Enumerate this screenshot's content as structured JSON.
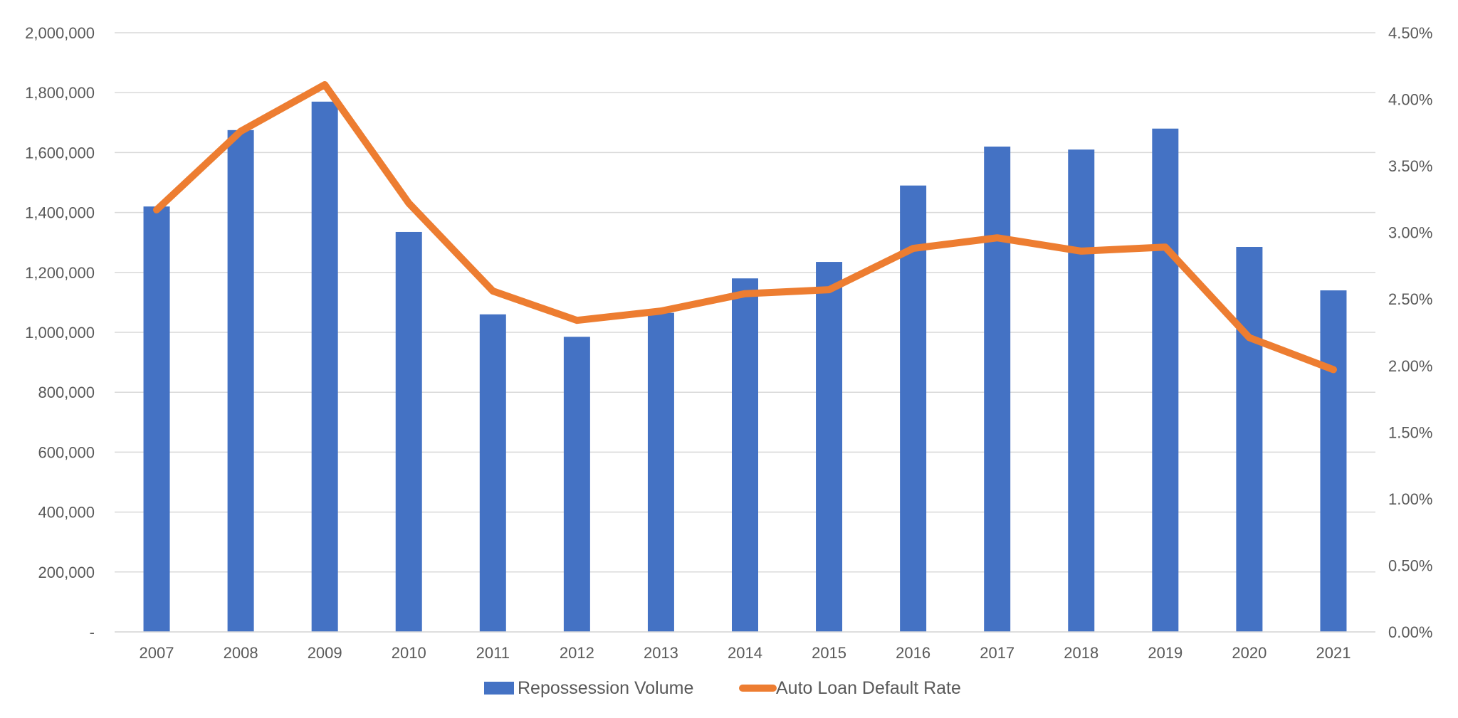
{
  "chart_data": {
    "type": "bar",
    "title": "",
    "xlabel": "",
    "ylabel": "",
    "categories": [
      "2007",
      "2008",
      "2009",
      "2010",
      "2011",
      "2012",
      "2013",
      "2014",
      "2015",
      "2016",
      "2017",
      "2018",
      "2019",
      "2020",
      "2021"
    ],
    "series": [
      {
        "name": "Repossession Volume",
        "type": "bar",
        "axis": "left",
        "color": "#4472c4",
        "values": [
          1420000,
          1675000,
          1770000,
          1335000,
          1060000,
          985000,
          1065000,
          1180000,
          1235000,
          1490000,
          1620000,
          1610000,
          1680000,
          1285000,
          1140000
        ]
      },
      {
        "name": "Auto Loan Default Rate",
        "type": "line",
        "axis": "right",
        "color": "#ed7d31",
        "values": [
          3.17,
          3.76,
          4.11,
          3.22,
          2.56,
          2.34,
          2.41,
          2.54,
          2.57,
          2.88,
          2.96,
          2.86,
          2.89,
          2.21,
          1.97
        ]
      }
    ],
    "left_axis": {
      "ylim": [
        0,
        2000000
      ],
      "ticks": [
        "-",
        "200,000",
        "400,000",
        "600,000",
        "800,000",
        "1,000,000",
        "1,200,000",
        "1,400,000",
        "1,600,000",
        "1,800,000",
        "2,000,000"
      ]
    },
    "right_axis": {
      "ylim": [
        0,
        4.5
      ],
      "ticks": [
        "0.00%",
        "0.50%",
        "1.00%",
        "1.50%",
        "2.00%",
        "2.50%",
        "3.00%",
        "3.50%",
        "4.00%",
        "4.50%"
      ]
    },
    "grid": true,
    "legend_position": "bottom"
  }
}
